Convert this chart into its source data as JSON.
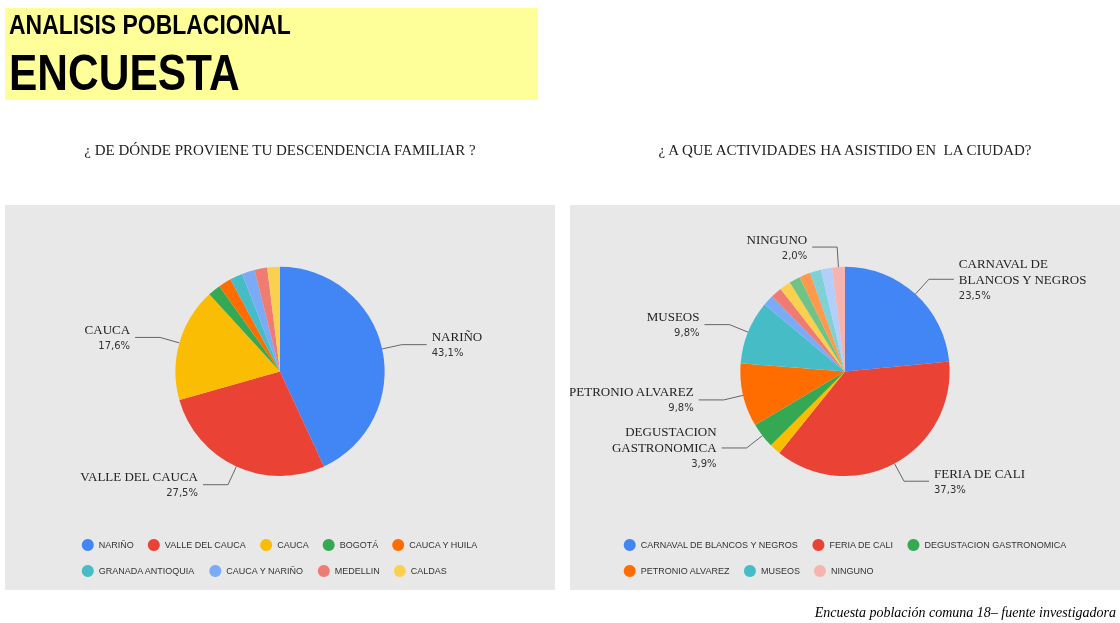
{
  "chart_data": [
    {
      "type": "pie",
      "title": "¿ DE DÓNDE PROVIENE TU DESCENDENCIA FAMILIAR ?",
      "annotations": [
        "ANALISIS POBLACIONAL",
        "ENCUESTA"
      ],
      "categories": [
        "NARIÑO",
        "VALLE DEL CAUCA",
        "CAUCA",
        "BOGOTÁ",
        "CAUCA Y HUILA",
        "GRANADA ANTIOQUIA",
        "CAUCA Y NARIÑO",
        "MEDELLIN",
        "CALDAS"
      ],
      "values": [
        43.1,
        27.5,
        17.6,
        1.97,
        1.97,
        1.97,
        1.97,
        1.96,
        1.96
      ],
      "value_labels": [
        "43,1%",
        "27,5%",
        "17,6%",
        null,
        null,
        null,
        null,
        null,
        null
      ],
      "colors": [
        "#4285f4",
        "#ea4335",
        "#fbbc04",
        "#34a853",
        "#ff6d01",
        "#46bdc6",
        "#7baaf7",
        "#f07b72",
        "#fcd04f"
      ],
      "legend": "bottom"
    },
    {
      "type": "pie",
      "title": "¿ A QUE ACTIVIDADES HA ASISTIDO EN  LA CIUDAD?",
      "annotations": [
        "Encuesta población comuna 18– fuente investigadora"
      ],
      "categories": [
        "CARNAVAL DE BLANCOS Y NEGROS",
        "FERIA DE CALI",
        null,
        "DEGUSTACION GASTRONOMICA",
        "PETRONIO ALVAREZ",
        "MUSEOS",
        null,
        null,
        null,
        null,
        null,
        null,
        null,
        "NINGUNO"
      ],
      "values": [
        23.5,
        37.3,
        1.73,
        3.9,
        9.8,
        9.8,
        1.71,
        1.71,
        1.71,
        1.71,
        1.71,
        1.71,
        1.71,
        2.0
      ],
      "value_labels": [
        "23,5%",
        "37,3%",
        null,
        "3,9%",
        "9,8%",
        "9,8%",
        null,
        null,
        null,
        null,
        null,
        null,
        null,
        "2,0%"
      ],
      "colors": [
        "#4285f4",
        "#ea4335",
        "#fbbc04",
        "#34a853",
        "#ff6d01",
        "#46bdc6",
        "#7baaf7",
        "#f07b72",
        "#fcd04f",
        "#71c287",
        "#ff994d",
        "#7ed1d7",
        "#b3cefb",
        "#f7b4ae"
      ],
      "legend": "bottom"
    }
  ]
}
